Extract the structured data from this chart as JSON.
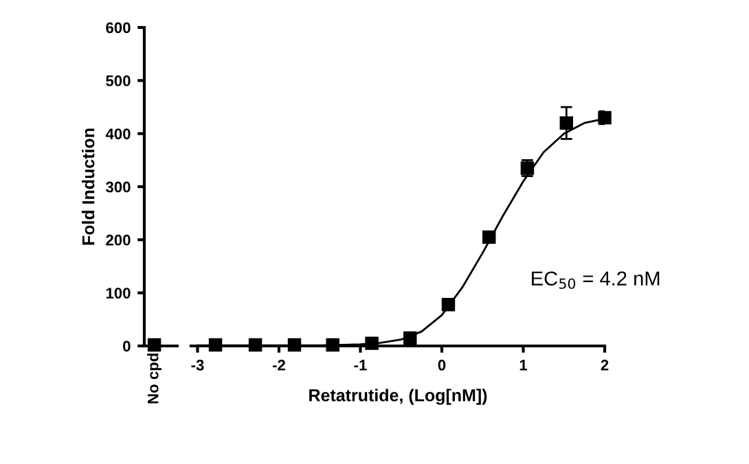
{
  "chart_data": [
    {
      "type": "scatter",
      "ylabel": "Fold Induction",
      "categories": [
        "No cpd"
      ],
      "ylim": [
        0,
        600
      ],
      "yticks": [
        0,
        100,
        200,
        300,
        400,
        500,
        600
      ],
      "marker": "square",
      "series": [
        {
          "color": "#000000",
          "values": [
            2
          ]
        }
      ]
    },
    {
      "type": "scatter",
      "xlabel": "Retatrutide, (Log[nM])",
      "xlim": [
        -3.08,
        2
      ],
      "xticks": [
        -3,
        -2,
        -1,
        0,
        1,
        2
      ],
      "ylim": [
        0,
        600
      ],
      "tick_labels": "x",
      "marker": "square",
      "annotations": [
        "EC$_{50}$ = 4.2 nM"
      ],
      "series": [
        {
          "color": "#000000",
          "x": [
            -2.78,
            -2.29,
            -1.81,
            -1.34,
            -0.86,
            -0.39,
            0.08,
            0.58,
            1.05,
            1.53,
            2.0
          ],
          "values": [
            2,
            2,
            2,
            2,
            5,
            15,
            78,
            205,
            335,
            420,
            430
          ],
          "errors": [
            null,
            null,
            null,
            null,
            null,
            null,
            null,
            null,
            15,
            30,
            12
          ]
        },
        {
          "type": "line",
          "color": "#000000",
          "marker": "none",
          "x": [
            -3,
            -1.5,
            -1,
            -0.75,
            -0.5,
            -0.25,
            0,
            0.25,
            0.5,
            0.75,
            1,
            1.25,
            1.5,
            1.75,
            2
          ],
          "values": [
            1,
            1,
            3,
            6,
            12,
            27,
            58,
            110,
            175,
            245,
            310,
            365,
            400,
            420,
            428
          ]
        }
      ]
    }
  ]
}
